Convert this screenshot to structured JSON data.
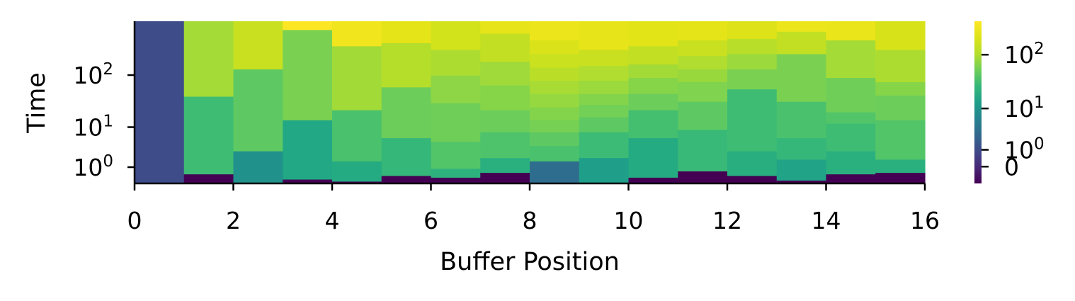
{
  "chart_data": {
    "type": "heatmap",
    "title": "",
    "xlabel": "Buffer Position",
    "ylabel": "Time",
    "xlim": [
      0,
      16
    ],
    "x_ticks": [
      "0",
      "2",
      "4",
      "6",
      "8",
      "10",
      "12",
      "14",
      "16"
    ],
    "y_ticks": [
      {
        "base": "10",
        "exp": "0"
      },
      {
        "base": "10",
        "exp": "1"
      },
      {
        "base": "10",
        "exp": "2"
      }
    ],
    "colorbar_ticks": [
      {
        "base": "10",
        "exp": "2"
      },
      {
        "base": "10",
        "exp": "1"
      },
      {
        "base": "10",
        "exp": "0"
      },
      {
        "base": "0",
        "exp": ""
      }
    ],
    "colormap": "viridis",
    "y_scale": "symlog",
    "color_scale": "symlog",
    "columns": [
      {
        "x": [
          0,
          1
        ],
        "segments": [
          {
            "from": 0,
            "to": 1000,
            "color": "#3e4c8a"
          }
        ]
      },
      {
        "x": [
          1,
          2
        ],
        "segments": [
          {
            "from": 0,
            "to": 0.5,
            "color": "#440154"
          },
          {
            "from": 0.5,
            "to": 40,
            "color": "#3fbc73"
          },
          {
            "from": 40,
            "to": 1000,
            "color": "#a5db36"
          }
        ]
      },
      {
        "x": [
          2,
          3
        ],
        "segments": [
          {
            "from": 0,
            "to": 3,
            "color": "#21918c"
          },
          {
            "from": 3,
            "to": 130,
            "color": "#5ec962"
          },
          {
            "from": 130,
            "to": 1000,
            "color": "#c8e020"
          }
        ]
      },
      {
        "x": [
          3,
          4
        ],
        "segments": [
          {
            "from": 0,
            "to": 0.2,
            "color": "#440154"
          },
          {
            "from": 0.2,
            "to": 14,
            "color": "#22a884"
          },
          {
            "from": 14,
            "to": 700,
            "color": "#7ad151"
          },
          {
            "from": 700,
            "to": 1000,
            "color": "#fde725"
          }
        ]
      },
      {
        "x": [
          4,
          5
        ],
        "segments": [
          {
            "from": 0,
            "to": 0.1,
            "color": "#440154"
          },
          {
            "from": 0.1,
            "to": 1.6,
            "color": "#25ab82"
          },
          {
            "from": 1.6,
            "to": 22,
            "color": "#4ac16d"
          },
          {
            "from": 22,
            "to": 350,
            "color": "#a2da37"
          },
          {
            "from": 350,
            "to": 1000,
            "color": "#f1e51d"
          }
        ]
      },
      {
        "x": [
          5,
          6
        ],
        "segments": [
          {
            "from": 0,
            "to": 0.4,
            "color": "#440154"
          },
          {
            "from": 0.4,
            "to": 6,
            "color": "#35b779"
          },
          {
            "from": 6,
            "to": 60,
            "color": "#6ccd5a"
          },
          {
            "from": 60,
            "to": 400,
            "color": "#b5de2b"
          },
          {
            "from": 400,
            "to": 1000,
            "color": "#e5e419"
          }
        ]
      },
      {
        "x": [
          6,
          7
        ],
        "segments": [
          {
            "from": 0,
            "to": 0.3,
            "color": "#440154"
          },
          {
            "from": 0.3,
            "to": 0.9,
            "color": "#2db27d"
          },
          {
            "from": 0.9,
            "to": 5,
            "color": "#52c569"
          },
          {
            "from": 5,
            "to": 30,
            "color": "#6ece58"
          },
          {
            "from": 30,
            "to": 100,
            "color": "#8ed645"
          },
          {
            "from": 100,
            "to": 300,
            "color": "#addc30"
          },
          {
            "from": 300,
            "to": 1000,
            "color": "#d2e21b"
          }
        ]
      },
      {
        "x": [
          7,
          8
        ],
        "segments": [
          {
            "from": 0,
            "to": 0.6,
            "color": "#440154"
          },
          {
            "from": 0.6,
            "to": 2,
            "color": "#2ab07f"
          },
          {
            "from": 2,
            "to": 8,
            "color": "#4ec36b"
          },
          {
            "from": 8,
            "to": 22,
            "color": "#6ccd5a"
          },
          {
            "from": 22,
            "to": 65,
            "color": "#86d549"
          },
          {
            "from": 65,
            "to": 180,
            "color": "#9fda3a"
          },
          {
            "from": 180,
            "to": 600,
            "color": "#c2df23"
          },
          {
            "from": 600,
            "to": 1000,
            "color": "#e7e419"
          }
        ]
      },
      {
        "x": [
          8,
          9
        ],
        "segments": [
          {
            "from": 0,
            "to": 1.6,
            "color": "#2f6d8e"
          },
          {
            "from": 1.6,
            "to": 4,
            "color": "#4ac16d"
          },
          {
            "from": 4,
            "to": 8,
            "color": "#5ec962"
          },
          {
            "from": 8,
            "to": 14,
            "color": "#75d054"
          },
          {
            "from": 14,
            "to": 25,
            "color": "#84d44b"
          },
          {
            "from": 25,
            "to": 45,
            "color": "#95d840"
          },
          {
            "from": 45,
            "to": 80,
            "color": "#a8db34"
          },
          {
            "from": 80,
            "to": 140,
            "color": "#bade28"
          },
          {
            "from": 140,
            "to": 250,
            "color": "#cae11f"
          },
          {
            "from": 250,
            "to": 450,
            "color": "#dae319"
          },
          {
            "from": 450,
            "to": 1000,
            "color": "#ede51b"
          }
        ]
      },
      {
        "x": [
          9,
          10
        ],
        "segments": [
          {
            "from": 0,
            "to": 0.05,
            "color": "#440154"
          },
          {
            "from": 0.05,
            "to": 2,
            "color": "#1f9e89"
          },
          {
            "from": 2,
            "to": 8,
            "color": "#3bbb75"
          },
          {
            "from": 8,
            "to": 16,
            "color": "#5ec962"
          },
          {
            "from": 16,
            "to": 28,
            "color": "#73d056"
          },
          {
            "from": 28,
            "to": 45,
            "color": "#84d44b"
          },
          {
            "from": 45,
            "to": 80,
            "color": "#9bd93c"
          },
          {
            "from": 80,
            "to": 150,
            "color": "#b0dd2f"
          },
          {
            "from": 150,
            "to": 300,
            "color": "#c8e020"
          },
          {
            "from": 300,
            "to": 1000,
            "color": "#e7e419"
          }
        ]
      },
      {
        "x": [
          10,
          11
        ],
        "segments": [
          {
            "from": 0,
            "to": 0.3,
            "color": "#440154"
          },
          {
            "from": 0.3,
            "to": 6,
            "color": "#25ab82"
          },
          {
            "from": 6,
            "to": 22,
            "color": "#44bf70"
          },
          {
            "from": 22,
            "to": 45,
            "color": "#6ccd5a"
          },
          {
            "from": 45,
            "to": 90,
            "color": "#86d549"
          },
          {
            "from": 90,
            "to": 160,
            "color": "#a2da37"
          },
          {
            "from": 160,
            "to": 350,
            "color": "#c2df23"
          },
          {
            "from": 350,
            "to": 1000,
            "color": "#e2e418"
          }
        ]
      },
      {
        "x": [
          11,
          12
        ],
        "segments": [
          {
            "from": 0,
            "to": 0.7,
            "color": "#440154"
          },
          {
            "from": 0.7,
            "to": 9,
            "color": "#38b977"
          },
          {
            "from": 9,
            "to": 32,
            "color": "#5ec962"
          },
          {
            "from": 32,
            "to": 75,
            "color": "#7fd34e"
          },
          {
            "from": 75,
            "to": 130,
            "color": "#99d83d"
          },
          {
            "from": 130,
            "to": 230,
            "color": "#b0dd2f"
          },
          {
            "from": 230,
            "to": 450,
            "color": "#c8e020"
          },
          {
            "from": 450,
            "to": 1000,
            "color": "#e5e419"
          }
        ]
      },
      {
        "x": [
          12,
          13
        ],
        "segments": [
          {
            "from": 0,
            "to": 0.4,
            "color": "#440154"
          },
          {
            "from": 0.4,
            "to": 3,
            "color": "#29af7f"
          },
          {
            "from": 3,
            "to": 55,
            "color": "#3fbc73"
          },
          {
            "from": 55,
            "to": 130,
            "color": "#7ad151"
          },
          {
            "from": 130,
            "to": 250,
            "color": "#9bd93c"
          },
          {
            "from": 250,
            "to": 480,
            "color": "#b8de29"
          },
          {
            "from": 480,
            "to": 1000,
            "color": "#dde318"
          }
        ]
      },
      {
        "x": [
          13,
          14
        ],
        "segments": [
          {
            "from": 0,
            "to": 0.15,
            "color": "#440154"
          },
          {
            "from": 0.15,
            "to": 1.8,
            "color": "#20a386"
          },
          {
            "from": 1.8,
            "to": 6,
            "color": "#35b779"
          },
          {
            "from": 6,
            "to": 32,
            "color": "#4ac16d"
          },
          {
            "from": 32,
            "to": 250,
            "color": "#7ad151"
          },
          {
            "from": 250,
            "to": 650,
            "color": "#c2df23"
          },
          {
            "from": 650,
            "to": 1000,
            "color": "#ece51b"
          }
        ]
      },
      {
        "x": [
          14,
          15
        ],
        "segments": [
          {
            "from": 0,
            "to": 0.5,
            "color": "#440154"
          },
          {
            "from": 0.5,
            "to": 3,
            "color": "#2ab07f"
          },
          {
            "from": 3,
            "to": 12,
            "color": "#3fbc73"
          },
          {
            "from": 12,
            "to": 20,
            "color": "#52c569"
          },
          {
            "from": 20,
            "to": 90,
            "color": "#6ece58"
          },
          {
            "from": 90,
            "to": 450,
            "color": "#a5db36"
          },
          {
            "from": 450,
            "to": 1000,
            "color": "#eae51a"
          }
        ]
      },
      {
        "x": [
          15,
          16
        ],
        "segments": [
          {
            "from": 0,
            "to": 0.6,
            "color": "#440154"
          },
          {
            "from": 0.6,
            "to": 1.8,
            "color": "#2ab07f"
          },
          {
            "from": 1.8,
            "to": 14,
            "color": "#52c569"
          },
          {
            "from": 14,
            "to": 42,
            "color": "#6ccd5a"
          },
          {
            "from": 42,
            "to": 75,
            "color": "#86d549"
          },
          {
            "from": 75,
            "to": 300,
            "color": "#addc30"
          },
          {
            "from": 300,
            "to": 1000,
            "color": "#d8e219"
          }
        ]
      }
    ]
  }
}
